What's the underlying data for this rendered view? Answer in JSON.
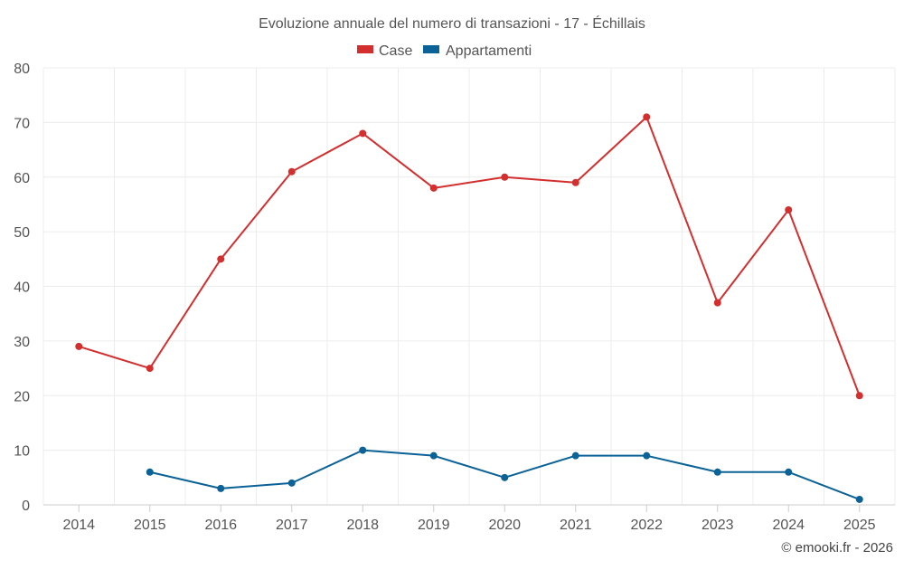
{
  "chart_data": {
    "type": "line",
    "title": "Evoluzione annuale del numero di transazioni - 17 - Échillais",
    "categories": [
      "2014",
      "2015",
      "2016",
      "2017",
      "2018",
      "2019",
      "2020",
      "2021",
      "2022",
      "2023",
      "2024",
      "2025"
    ],
    "ylim": [
      0,
      80
    ],
    "yticks": [
      0,
      10,
      20,
      30,
      40,
      50,
      60,
      70,
      80
    ],
    "grid": true,
    "legend_position": "top-center",
    "series": [
      {
        "name": "Case",
        "color": "#d32f2f",
        "values": [
          29,
          25,
          45,
          61,
          68,
          58,
          60,
          59,
          71,
          37,
          54,
          20
        ]
      },
      {
        "name": "Appartamenti",
        "color": "#0b6296",
        "values": [
          null,
          6,
          3,
          4,
          10,
          9,
          5,
          9,
          9,
          6,
          6,
          1
        ]
      }
    ],
    "credit": "© emooki.fr - 2026"
  }
}
